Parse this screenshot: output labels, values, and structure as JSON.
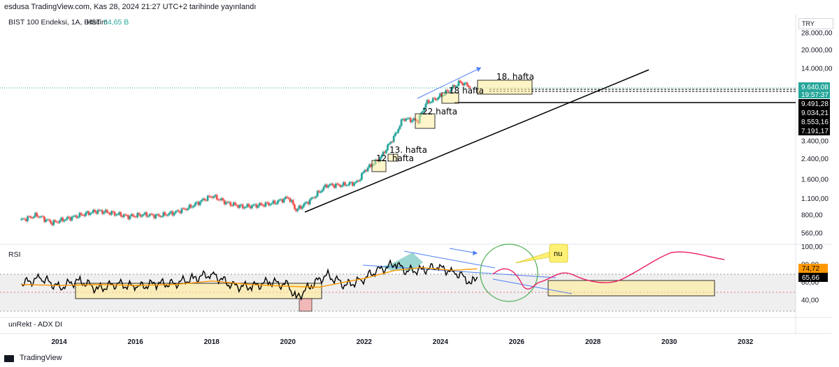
{
  "publisher_line": "esdusa TradingView.com, Kas 28, 2024 21:27 UTC+2 tarihinde yayınlandı",
  "footer_brand": "TradingView",
  "currency_label": "TRY",
  "main_pane": {
    "symbol_title": "BIST 100 Endeksi, 1A, BIST",
    "volume_label": "Hacim",
    "volume_value": "64,65 B",
    "volume_value_color": "#26a69a",
    "price_axis_ticks": [
      "28.000,00",
      "20.000,00",
      "14.000,00",
      "3.400,00",
      "2.400,00",
      "1.600,00",
      "1.100,00",
      "800,00",
      "560,00"
    ],
    "price_badges": [
      {
        "value": "9.640,08",
        "subtext": "19:57:37",
        "color": "#26a69a"
      },
      {
        "value": "9.491,28",
        "color": "#000000"
      },
      {
        "value": "9.034,21",
        "color": "#000000"
      },
      {
        "value": "8.553,16",
        "color": "#000000"
      },
      {
        "value": "7.191,17",
        "color": "#000000"
      }
    ],
    "annotations": [
      "12. hafta",
      "13. hafta",
      "22 hafta",
      "18 hafta",
      "18. hafta"
    ]
  },
  "rsi_pane": {
    "label": "RSI",
    "axis_ticks": [
      "100,00",
      "80,00",
      "60,00",
      "40,00"
    ],
    "rsi_value": "65,66",
    "ma_value": "74,72",
    "rsi_color": "#000000",
    "ma_color": "#ff9800",
    "projection_color": "#e91e63",
    "callout_text": "nu"
  },
  "adx_pane": {
    "label": "unRekt - ADX DI"
  },
  "x_axis_ticks": [
    "2014",
    "2016",
    "2018",
    "2020",
    "2022",
    "2024",
    "2026",
    "2028",
    "2030",
    "2032"
  ],
  "chart_data": [
    {
      "type": "candlestick",
      "title": "BIST 100 Endeksi, 1A, BIST",
      "y_scale": "log",
      "ylim": [
        480,
        36000
      ],
      "xlim": [
        2012.8,
        2033.3
      ],
      "approx_monthly_close": [
        [
          2013.0,
          720
        ],
        [
          2013.4,
          790
        ],
        [
          2013.8,
          680
        ],
        [
          2014.2,
          740
        ],
        [
          2014.6,
          800
        ],
        [
          2015.0,
          860
        ],
        [
          2015.4,
          820
        ],
        [
          2015.8,
          770
        ],
        [
          2016.2,
          800
        ],
        [
          2016.6,
          780
        ],
        [
          2017.0,
          830
        ],
        [
          2017.4,
          920
        ],
        [
          2017.8,
          1080
        ],
        [
          2018.0,
          1150
        ],
        [
          2018.4,
          1000
        ],
        [
          2018.8,
          930
        ],
        [
          2019.2,
          960
        ],
        [
          2019.6,
          1000
        ],
        [
          2020.0,
          1120
        ],
        [
          2020.2,
          870
        ],
        [
          2020.6,
          1080
        ],
        [
          2021.0,
          1420
        ],
        [
          2021.4,
          1420
        ],
        [
          2021.8,
          1500
        ],
        [
          2022.0,
          1900
        ],
        [
          2022.4,
          2400
        ],
        [
          2022.8,
          3800
        ],
        [
          2023.0,
          5200
        ],
        [
          2023.4,
          5000
        ],
        [
          2023.6,
          7000
        ],
        [
          2023.9,
          7800
        ],
        [
          2024.2,
          9000
        ],
        [
          2024.5,
          10600
        ],
        [
          2024.8,
          9640
        ]
      ],
      "price_levels": [
        9640.08,
        9491.28,
        9034.21,
        8553.16,
        7191.17
      ]
    },
    {
      "type": "line",
      "title": "RSI",
      "ylim": [
        20,
        100
      ],
      "series": [
        {
          "name": "RSI",
          "values": [
            [
              2013.0,
              58
            ],
            [
              2013.5,
              64
            ],
            [
              2014.0,
              54
            ],
            [
              2014.5,
              62
            ],
            [
              2015.0,
              52
            ],
            [
              2015.5,
              58
            ],
            [
              2016.0,
              54
            ],
            [
              2016.5,
              58
            ],
            [
              2017.0,
              58
            ],
            [
              2017.5,
              64
            ],
            [
              2018.0,
              69
            ],
            [
              2018.5,
              56
            ],
            [
              2019.0,
              54
            ],
            [
              2019.5,
              60
            ],
            [
              2020.0,
              56
            ],
            [
              2020.2,
              42
            ],
            [
              2020.6,
              56
            ],
            [
              2021.0,
              68
            ],
            [
              2021.5,
              56
            ],
            [
              2021.9,
              62
            ],
            [
              2022.3,
              72
            ],
            [
              2022.8,
              80
            ],
            [
              2023.1,
              72
            ],
            [
              2023.5,
              74
            ],
            [
              2023.9,
              76
            ],
            [
              2024.3,
              72
            ],
            [
              2024.6,
              66
            ],
            [
              2024.8,
              58
            ],
            [
              2024.95,
              65.66
            ]
          ]
        },
        {
          "name": "RSI MA",
          "values": [
            [
              2013.0,
              57
            ],
            [
              2014.0,
              56
            ],
            [
              2015.0,
              57
            ],
            [
              2016.0,
              56
            ],
            [
              2017.0,
              57
            ],
            [
              2018.0,
              61
            ],
            [
              2019.0,
              57
            ],
            [
              2020.0,
              55
            ],
            [
              2020.8,
              54
            ],
            [
              2021.5,
              60
            ],
            [
              2022.0,
              64
            ],
            [
              2022.8,
              73
            ],
            [
              2023.5,
              76
            ],
            [
              2024.3,
              73
            ],
            [
              2024.95,
              74.72
            ]
          ]
        }
      ]
    }
  ]
}
